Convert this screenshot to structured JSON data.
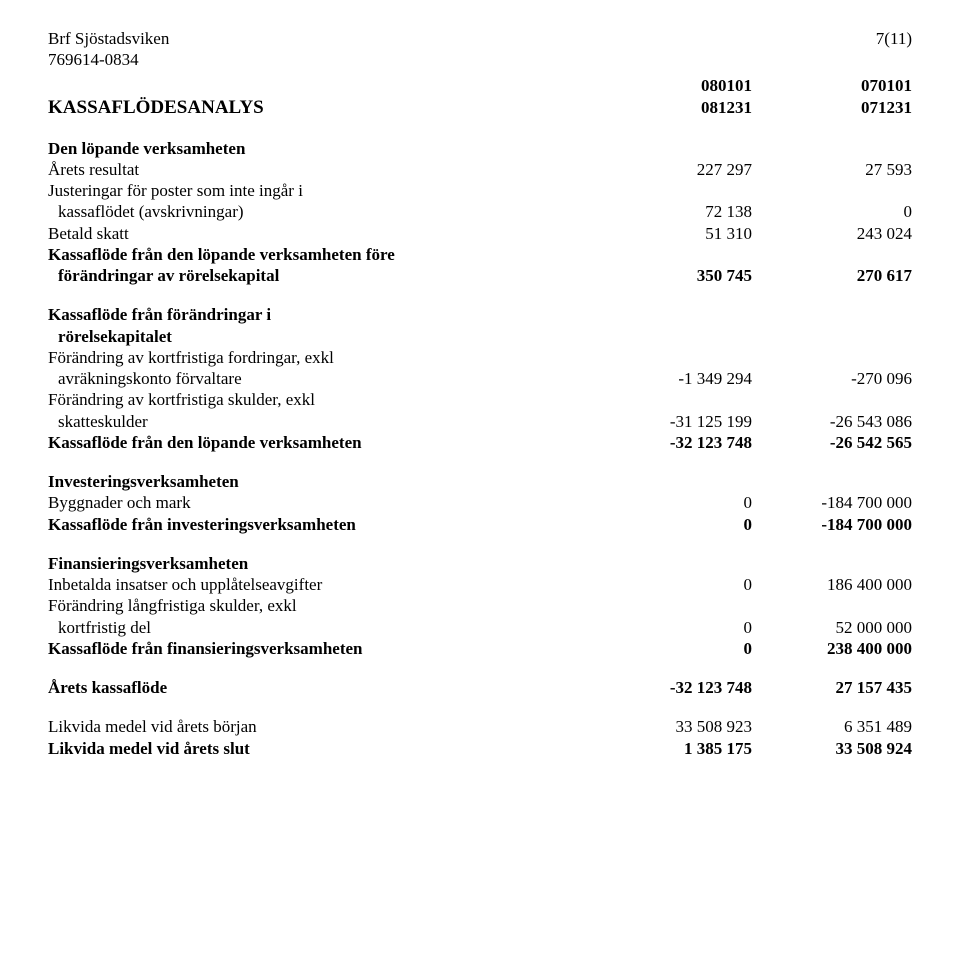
{
  "header": {
    "company": "Brf Sjöstadsviken",
    "orgnr": "769614-0834",
    "page": "7(11)"
  },
  "periods": {
    "curr_start": "080101",
    "prev_start": "070101",
    "curr_end": "081231",
    "prev_end": "071231"
  },
  "title": "KASSAFLÖDESANALYS",
  "sections": {
    "op_heading": "Den löpande verksamheten",
    "op": [
      {
        "label": "Årets resultat",
        "c": "227 297",
        "p": "27 593"
      },
      {
        "label": "Justeringar för poster som inte ingår i"
      },
      {
        "label": "kassaflödet (avskrivningar)",
        "indent": true,
        "c": "72 138",
        "p": "0"
      },
      {
        "label": "Betald skatt",
        "c": "51 310",
        "p": "243 024"
      }
    ],
    "op_before_wc_1": "Kassaflöde från den löpande verksamheten före",
    "op_before_wc_2": "förändringar av rörelsekapital",
    "op_before_wc_c": "350 745",
    "op_before_wc_p": "270 617",
    "wc_heading_1": "Kassaflöde från förändringar i",
    "wc_heading_2": "rörelsekapitalet",
    "wc": [
      {
        "label": "Förändring av kortfristiga fordringar, exkl"
      },
      {
        "label": "avräkningskonto förvaltare",
        "indent": true,
        "c": "-1 349 294",
        "p": "-270 096"
      },
      {
        "label": "Förändring av kortfristiga skulder, exkl"
      },
      {
        "label": "skatteskulder",
        "indent": true,
        "c": "-31 125 199",
        "p": "-26 543 086"
      }
    ],
    "op_total_label": "Kassaflöde från den löpande verksamheten",
    "op_total_c": "-32 123 748",
    "op_total_p": "-26 542 565",
    "inv_heading": "Investeringsverksamheten",
    "inv": [
      {
        "label": "Byggnader och mark",
        "c": "0",
        "p": "-184 700 000"
      }
    ],
    "inv_total_label": "Kassaflöde från investeringsverksamheten",
    "inv_total_c": "0",
    "inv_total_p": "-184 700 000",
    "fin_heading": "Finansieringsverksamheten",
    "fin": [
      {
        "label": "Inbetalda insatser och upplåtelseavgifter",
        "c": "0",
        "p": "186 400 000"
      },
      {
        "label": "Förändring långfristiga skulder, exkl"
      },
      {
        "label": "kortfristig del",
        "indent": true,
        "c": "0",
        "p": "52 000 000"
      }
    ],
    "fin_total_label": "Kassaflöde från finansieringsverksamheten",
    "fin_total_c": "0",
    "fin_total_p": "238 400 000",
    "year_label": "Årets kassaflöde",
    "year_c": "-32 123 748",
    "year_p": "27 157 435",
    "liq_start_label": "Likvida medel vid årets början",
    "liq_start_c": "33 508 923",
    "liq_start_p": "6 351 489",
    "liq_end_label": "Likvida medel vid årets slut",
    "liq_end_c": "1 385 175",
    "liq_end_p": "33 508 924"
  }
}
